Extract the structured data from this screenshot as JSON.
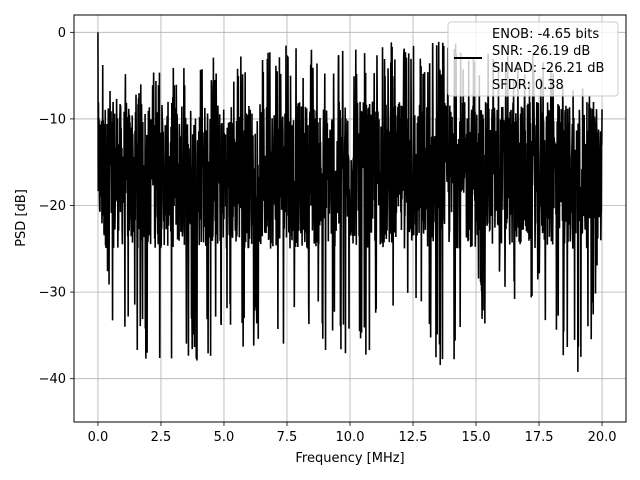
{
  "chart_data": {
    "type": "line",
    "xlabel": "Frequency [MHz]",
    "ylabel": "PSD [dB]",
    "xlim": [
      -0.95,
      20.95
    ],
    "ylim": [
      -45,
      2
    ],
    "xticks": [
      0.0,
      2.5,
      5.0,
      7.5,
      10.0,
      12.5,
      15.0,
      17.5,
      20.0
    ],
    "xtick_labels": [
      "0.0",
      "2.5",
      "5.0",
      "7.5",
      "10.0",
      "12.5",
      "15.0",
      "17.5",
      "20.0"
    ],
    "yticks": [
      0,
      -10,
      -20,
      -30,
      -40
    ],
    "ytick_labels": [
      "0",
      "−10",
      "−20",
      "−30",
      "−40"
    ],
    "grid": true,
    "legend": {
      "placement": "upper-right",
      "lines": [
        "ENOB: -4.65 bits",
        "SNR: -26.19 dB",
        "SINAD: -26.21 dB",
        "SFDR: 0.38"
      ]
    },
    "series": [
      {
        "color": "#000000",
        "description_values": {
          "x_range": [
            0.0,
            20.0
          ],
          "peak": {
            "x": 0.0,
            "y": 0.0
          },
          "envelope_max": [
            [
              0.0,
              0.0
            ],
            [
              0.5,
              -5
            ],
            [
              2.5,
              -4
            ],
            [
              5.0,
              -2
            ],
            [
              7.5,
              -1.5
            ],
            [
              10.0,
              -1.8
            ],
            [
              12.5,
              -0.8
            ],
            [
              15.0,
              -1.5
            ],
            [
              17.5,
              -2.5
            ],
            [
              20.0,
              -7.5
            ]
          ],
          "envelope_min": [
            [
              0.0,
              -18
            ],
            [
              0.5,
              -35
            ],
            [
              2.5,
              -40
            ],
            [
              5.0,
              -37
            ],
            [
              7.5,
              -36
            ],
            [
              10.0,
              -38
            ],
            [
              12.5,
              -35
            ],
            [
              13.7,
              -40.5
            ],
            [
              15.0,
              -34
            ],
            [
              17.5,
              -32
            ],
            [
              19.3,
              -43
            ],
            [
              20.0,
              -24
            ]
          ],
          "typical_band": [
            -25,
            -8
          ]
        }
      }
    ]
  }
}
